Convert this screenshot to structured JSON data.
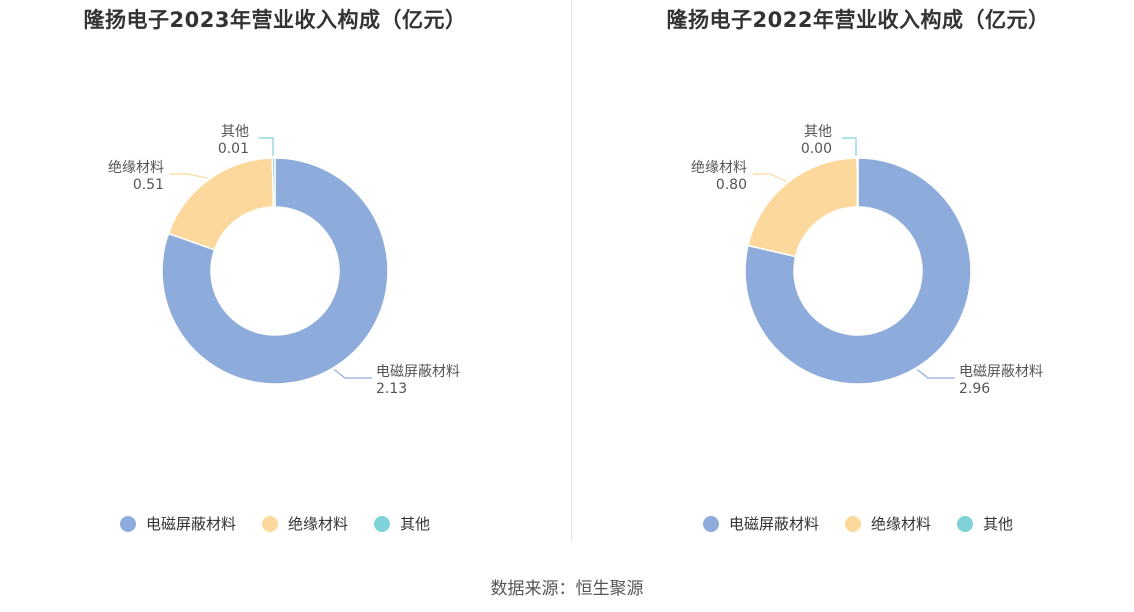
{
  "colors": {
    "电磁屏蔽材料": "#8eacdb",
    "绝缘材料": "#fdd89c",
    "其他": "#7fd3d6"
  },
  "charts": [
    {
      "title": "隆扬电子2023年营业收入构成（亿元）",
      "legend": [
        "电磁屏蔽材料",
        "绝缘材料",
        "其他"
      ],
      "chart_data": {
        "type": "pie",
        "title": "隆扬电子2023年营业收入构成（亿元）",
        "categories": [
          "电磁屏蔽材料",
          "绝缘材料",
          "其他"
        ],
        "values": [
          2.13,
          0.51,
          0.01
        ],
        "value_labels": [
          "2.13",
          "0.51",
          "0.01"
        ],
        "legend_position": "bottom"
      }
    },
    {
      "title": "隆扬电子2022年营业收入构成（亿元）",
      "legend": [
        "电磁屏蔽材料",
        "绝缘材料",
        "其他"
      ],
      "chart_data": {
        "type": "pie",
        "title": "隆扬电子2022年营业收入构成（亿元）",
        "categories": [
          "电磁屏蔽材料",
          "绝缘材料",
          "其他"
        ],
        "values": [
          2.96,
          0.8,
          0.0
        ],
        "value_labels": [
          "2.96",
          "0.80",
          "0.00"
        ],
        "legend_position": "bottom"
      }
    }
  ],
  "source": "数据来源：恒生聚源"
}
